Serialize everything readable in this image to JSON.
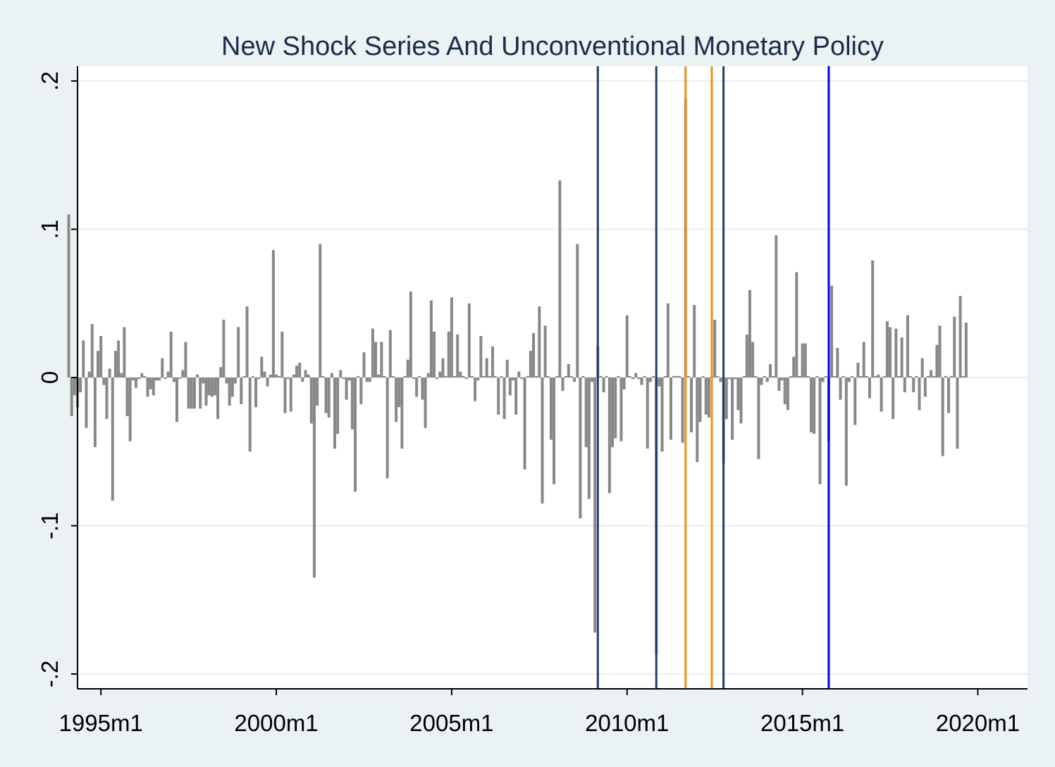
{
  "chart_data": {
    "type": "bar",
    "title": "New Shock Series And Unconventional Monetary Policy",
    "xlabel": "",
    "ylabel": "",
    "ylim": [
      -0.21,
      0.21
    ],
    "y_ticks": [
      {
        "value": 0.2,
        "label": ".2"
      },
      {
        "value": 0.1,
        "label": ".1"
      },
      {
        "value": 0,
        "label": "0"
      },
      {
        "value": -0.1,
        "label": "-.1"
      },
      {
        "value": -0.2,
        "label": "-.2"
      }
    ],
    "x_ticks": [
      {
        "month": "1995m1",
        "label": "1995m1"
      },
      {
        "month": "2000m1",
        "label": "2000m1"
      },
      {
        "month": "2005m1",
        "label": "2005m1"
      },
      {
        "month": "2010m1",
        "label": "2010m1"
      },
      {
        "month": "2015m1",
        "label": "2015m1"
      },
      {
        "month": "2020m1",
        "label": "2020m1"
      }
    ],
    "xlim": [
      "1994m5",
      "2021m6"
    ],
    "grid": true,
    "bar_color": "#888888",
    "x": [
      "1994m2",
      "1994m3",
      "1994m4",
      "1994m5",
      "1994m6",
      "1994m7",
      "1994m8",
      "1994m9",
      "1994m10",
      "1994m11",
      "1994m12",
      "1995m1",
      "1995m2",
      "1995m3",
      "1995m4",
      "1995m5",
      "1995m6",
      "1995m7",
      "1995m8",
      "1995m9",
      "1995m10",
      "1995m11",
      "1995m12",
      "1996m1",
      "1996m2",
      "1996m3",
      "1996m4",
      "1996m5",
      "1996m6",
      "1996m7",
      "1996m8",
      "1996m9",
      "1996m10",
      "1996m11",
      "1996m12",
      "1997m1",
      "1997m2",
      "1997m3",
      "1997m4",
      "1997m5",
      "1997m6",
      "1997m7",
      "1997m8",
      "1997m9",
      "1997m10",
      "1997m11",
      "1997m12",
      "1998m1",
      "1998m2",
      "1998m3",
      "1998m4",
      "1998m5",
      "1998m6",
      "1998m7",
      "1998m8",
      "1998m9",
      "1998m10",
      "1998m11",
      "1998m12",
      "1999m1",
      "1999m2",
      "1999m3",
      "1999m4",
      "1999m5",
      "1999m6",
      "1999m7",
      "1999m8",
      "1999m9",
      "1999m10",
      "1999m11",
      "1999m12",
      "2000m1",
      "2000m2",
      "2000m3",
      "2000m4",
      "2000m5",
      "2000m6",
      "2000m7",
      "2000m8",
      "2000m9",
      "2000m10",
      "2000m11",
      "2000m12",
      "2001m1",
      "2001m2",
      "2001m3",
      "2001m4",
      "2001m5",
      "2001m6",
      "2001m7",
      "2001m8",
      "2001m9",
      "2001m10",
      "2001m11",
      "2001m12",
      "2002m1",
      "2002m2",
      "2002m3",
      "2002m4",
      "2002m5",
      "2002m6",
      "2002m7",
      "2002m8",
      "2002m9",
      "2002m10",
      "2002m11",
      "2002m12",
      "2003m1",
      "2003m2",
      "2003m3",
      "2003m4",
      "2003m5",
      "2003m6",
      "2003m7",
      "2003m8",
      "2003m9",
      "2003m10",
      "2003m11",
      "2003m12",
      "2004m1",
      "2004m2",
      "2004m3",
      "2004m4",
      "2004m5",
      "2004m6",
      "2004m7",
      "2004m8",
      "2004m9",
      "2004m10",
      "2004m11",
      "2004m12",
      "2005m1",
      "2005m2",
      "2005m3",
      "2005m4",
      "2005m5",
      "2005m6",
      "2005m7",
      "2005m8",
      "2005m9",
      "2005m10",
      "2005m11",
      "2005m12",
      "2006m1",
      "2006m2",
      "2006m3",
      "2006m4",
      "2006m5",
      "2006m6",
      "2006m7",
      "2006m8",
      "2006m9",
      "2006m10",
      "2006m11",
      "2006m12",
      "2007m1",
      "2007m2",
      "2007m3",
      "2007m4",
      "2007m5",
      "2007m6",
      "2007m7",
      "2007m8",
      "2007m9",
      "2007m10",
      "2007m11",
      "2007m12",
      "2008m1",
      "2008m2",
      "2008m3",
      "2008m4",
      "2008m5",
      "2008m6",
      "2008m7",
      "2008m8",
      "2008m9",
      "2008m10",
      "2008m11",
      "2008m12",
      "2009m1",
      "2009m2",
      "2009m3",
      "2009m4",
      "2009m5",
      "2009m6",
      "2009m7",
      "2009m8",
      "2009m9",
      "2009m10",
      "2009m11",
      "2009m12",
      "2010m1",
      "2010m2",
      "2010m3",
      "2010m4",
      "2010m5",
      "2010m6",
      "2010m7",
      "2010m8",
      "2010m9",
      "2010m10",
      "2010m11",
      "2010m12",
      "2011m1",
      "2011m2",
      "2011m3",
      "2011m4",
      "2011m5",
      "2011m6",
      "2011m7",
      "2011m8",
      "2011m9",
      "2011m10",
      "2011m11",
      "2011m12",
      "2012m1",
      "2012m2",
      "2012m3",
      "2012m4",
      "2012m5",
      "2012m6",
      "2012m7",
      "2012m8",
      "2012m9",
      "2012m10",
      "2012m11",
      "2012m12",
      "2013m1",
      "2013m2",
      "2013m3",
      "2013m4",
      "2013m5",
      "2013m6",
      "2013m7",
      "2013m8",
      "2013m9",
      "2013m10",
      "2013m11",
      "2013m12",
      "2014m1",
      "2014m2",
      "2014m3",
      "2014m4",
      "2014m5",
      "2014m6",
      "2014m7",
      "2014m8",
      "2014m9",
      "2014m10",
      "2014m11",
      "2014m12",
      "2015m1",
      "2015m2",
      "2015m3",
      "2015m4",
      "2015m5",
      "2015m6",
      "2015m7",
      "2015m8",
      "2015m9",
      "2015m10",
      "2015m11",
      "2015m12",
      "2016m1",
      "2016m2",
      "2016m3",
      "2016m4",
      "2016m5",
      "2016m6",
      "2016m7",
      "2016m8",
      "2016m9",
      "2016m10",
      "2016m11",
      "2016m12",
      "2017m1",
      "2017m2",
      "2017m3",
      "2017m4",
      "2017m5",
      "2017m6",
      "2017m7",
      "2017m8",
      "2017m9",
      "2017m10",
      "2017m11",
      "2017m12",
      "2018m1",
      "2018m2",
      "2018m3",
      "2018m4",
      "2018m5",
      "2018m6",
      "2018m7",
      "2018m8",
      "2018m9",
      "2018m10",
      "2018m11",
      "2018m12",
      "2019m1",
      "2019m2",
      "2019m3",
      "2019m4",
      "2019m5",
      "2019m6",
      "2019m7",
      "2019m8",
      "2019m9"
    ],
    "series": [
      {
        "values": [
          0.11,
          -0.026,
          -0.012,
          -0.02,
          -0.01,
          0.025,
          -0.034,
          0.004,
          0.036,
          -0.047,
          0.018,
          0.028,
          -0.005,
          -0.028,
          0.006,
          -0.083,
          0.018,
          0.025,
          0.003,
          0.034,
          -0.026,
          -0.043,
          -0.002,
          -0.007,
          -0.001,
          0.003,
          0.001,
          -0.013,
          -0.008,
          -0.012,
          -0.002,
          -0.002,
          0.013,
          -0.001,
          0.004,
          0.031,
          -0.003,
          -0.03,
          -0.001,
          0.005,
          0.024,
          -0.021,
          -0.021,
          -0.021,
          0.002,
          -0.021,
          -0.004,
          -0.019,
          -0.012,
          -0.013,
          -0.012,
          -0.028,
          0.007,
          0.039,
          -0.004,
          -0.019,
          -0.013,
          -0.004,
          0.034,
          -0.018,
          0.001,
          0.048,
          -0.05,
          0.001,
          -0.02,
          -0.001,
          0.014,
          0.004,
          -0.006,
          0.002,
          0.086,
          0.002,
          0.001,
          0.031,
          -0.024,
          -0.001,
          -0.023,
          0.002,
          0.008,
          0.01,
          -0.003,
          0.005,
          0.002,
          -0.031,
          -0.135,
          -0.019,
          0.09,
          0.001,
          -0.024,
          -0.027,
          0.003,
          -0.048,
          -0.038,
          0.005,
          -0.001,
          -0.015,
          -0.002,
          -0.035,
          -0.077,
          0.001,
          -0.018,
          0.017,
          -0.003,
          -0.003,
          0.033,
          0.024,
          0.002,
          0.024,
          0.001,
          -0.068,
          0.032,
          0.001,
          -0.03,
          -0.02,
          -0.048,
          0.001,
          0.012,
          0.058,
          -0.001,
          -0.013,
          0.001,
          -0.015,
          -0.034,
          0.003,
          0.052,
          0.031,
          -0.001,
          0.004,
          0.013,
          0.001,
          0.031,
          0.054,
          0.001,
          0.029,
          0.004,
          0.001,
          -0.001,
          0.05,
          0.001,
          -0.016,
          -0.002,
          0.028,
          0.001,
          0.013,
          0.001,
          0.021,
          0.001,
          -0.025,
          0.001,
          -0.028,
          0.012,
          -0.012,
          -0.002,
          -0.025,
          0.004,
          -0.001,
          -0.062,
          0.001,
          0.018,
          0.03,
          0.001,
          0.048,
          -0.085,
          0.035,
          0.001,
          -0.042,
          -0.072,
          0.001,
          0.133,
          -0.009,
          0.001,
          0.009,
          0.001,
          -0.003,
          0.09,
          -0.095,
          0.001,
          -0.047,
          -0.082,
          -0.003,
          -0.172,
          0.021,
          0.001,
          -0.01,
          0.001,
          -0.078,
          -0.047,
          -0.041,
          0.001,
          -0.043,
          -0.008,
          0.042,
          0.001,
          -0.001,
          0.003,
          -0.001,
          -0.005,
          0.001,
          -0.048,
          -0.003,
          0.001,
          -0.187,
          -0.006,
          -0.05,
          0.001,
          0.05,
          -0.042,
          0.001,
          0.001,
          0.001,
          -0.044,
          0.188,
          0.001,
          -0.037,
          0.049,
          -0.057,
          -0.03,
          0.001,
          -0.025,
          -0.027,
          0.001,
          0.039,
          0.001,
          -0.003,
          -0.058,
          -0.028,
          -0.001,
          -0.042,
          -0.001,
          -0.022,
          -0.031,
          0.001,
          0.029,
          0.059,
          0.024,
          0.001,
          -0.055,
          -0.005,
          0.001,
          -0.003,
          0.009,
          0.001,
          0.096,
          -0.009,
          -0.002,
          -0.018,
          -0.022,
          0.001,
          0.014,
          0.071,
          0.001,
          0.023,
          0.023,
          0.001,
          -0.037,
          -0.038,
          0.001,
          -0.072,
          -0.003,
          0.001,
          -0.043,
          0.062,
          0.001,
          0.02,
          -0.015,
          0.001,
          -0.073,
          -0.003,
          0.001,
          -0.032,
          0.01,
          0.001,
          0.024,
          0.001,
          -0.014,
          0.079,
          0.001,
          0.002,
          -0.023,
          0.001,
          0.038,
          0.034,
          -0.028,
          0.033,
          0.001,
          0.027,
          -0.01,
          0.042,
          0.001,
          -0.01,
          0.001,
          -0.022,
          0.013,
          -0.013,
          0.001,
          0.005,
          0.001,
          0.022,
          0.035,
          -0.053,
          0.001,
          -0.024,
          0.001,
          0.041,
          -0.048,
          0.055,
          0.001,
          0.037
        ]
      }
    ],
    "vertical_lines": [
      {
        "month": "2009m3",
        "color": "#1f3f6e"
      },
      {
        "month": "2010m11",
        "color": "#1f3f6e"
      },
      {
        "month": "2011m9",
        "color": "#f28e1c"
      },
      {
        "month": "2012m6",
        "color": "#f28e1c"
      },
      {
        "month": "2012m10",
        "color": "#1f3f6e"
      },
      {
        "month": "2015m10",
        "color": "#0000ee"
      }
    ]
  }
}
